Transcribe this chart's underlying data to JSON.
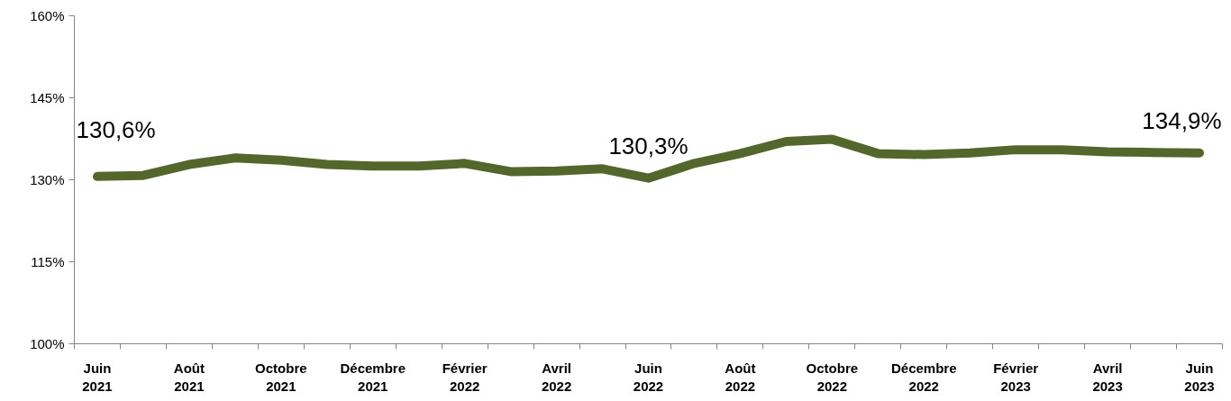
{
  "chart_data": {
    "type": "line",
    "categories": [
      "Juin 2021",
      null,
      "Août 2021",
      null,
      "Octobre 2021",
      null,
      "Décembre 2021",
      null,
      "Février 2022",
      null,
      "Avril 2022",
      null,
      "Juin 2022",
      null,
      "Août 2022",
      null,
      "Octobre 2022",
      null,
      "Décembre 2022",
      null,
      "Février 2023",
      null,
      "Avril 2023",
      null,
      "Juin 2023"
    ],
    "series": [
      {
        "color": "#53662b",
        "values": [
          130.6,
          130.8,
          132.8,
          134.0,
          133.6,
          132.8,
          132.5,
          132.5,
          133.0,
          131.5,
          131.6,
          132.0,
          130.3,
          133.0,
          134.8,
          137.0,
          137.4,
          134.8,
          134.6,
          134.9,
          135.5,
          135.5,
          135.1,
          135.0,
          134.9
        ],
        "value_labels": [
          "130,6%",
          null,
          null,
          null,
          null,
          null,
          null,
          null,
          null,
          null,
          null,
          null,
          "130,3%",
          null,
          null,
          null,
          null,
          null,
          null,
          null,
          null,
          null,
          null,
          null,
          "134,9%"
        ]
      }
    ],
    "ylim": [
      100,
      160
    ],
    "yticks": [
      {
        "value": 100,
        "label": "100%"
      },
      {
        "value": 115,
        "label": "115%"
      },
      {
        "value": 130,
        "label": "130%"
      },
      {
        "value": 145,
        "label": "145%"
      },
      {
        "value": 160,
        "label": "160%"
      }
    ],
    "grid": false,
    "marker": "none",
    "line_style": "solid"
  }
}
